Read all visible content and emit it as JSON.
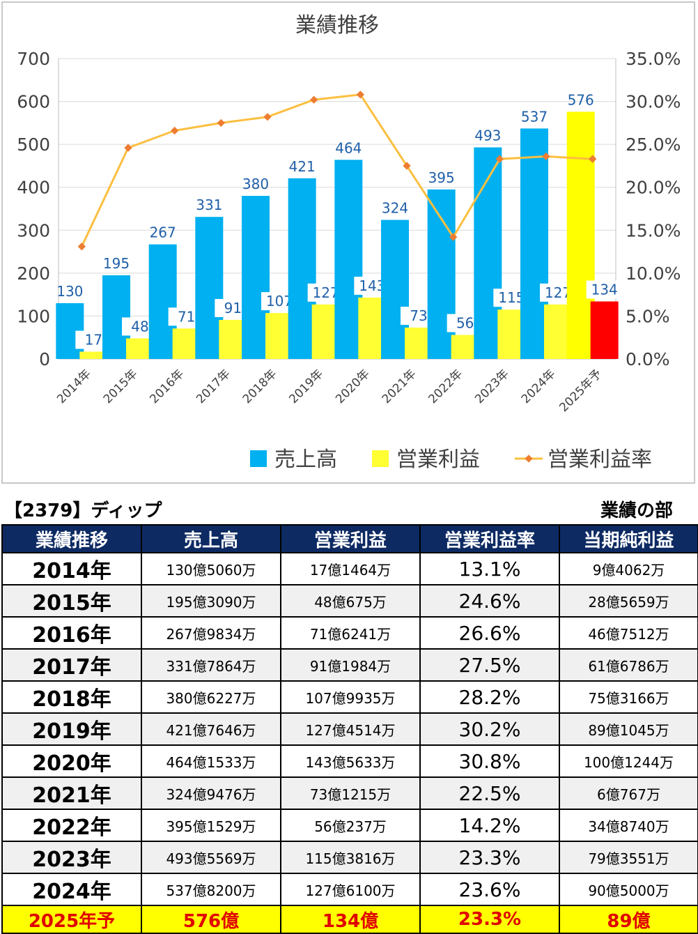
{
  "chart_data": {
    "type": "bar",
    "title": "業績推移",
    "categories": [
      "2014年",
      "2015年",
      "2016年",
      "2017年",
      "2018年",
      "2019年",
      "2020年",
      "2021年",
      "2022年",
      "2023年",
      "2024年",
      "2025年予"
    ],
    "series": [
      {
        "name": "売上高",
        "kind": "bar",
        "axis": "left",
        "color": "#00b0f0",
        "values": [
          130,
          195,
          267,
          331,
          380,
          421,
          464,
          324,
          395,
          493,
          537,
          576
        ]
      },
      {
        "name": "営業利益",
        "kind": "bar",
        "axis": "left",
        "color": "#ffff33",
        "values": [
          17,
          48,
          71,
          91,
          107,
          127,
          143,
          73,
          56,
          115,
          127,
          134
        ]
      },
      {
        "name": "営業利益率",
        "kind": "line",
        "axis": "right",
        "color": "#f4b183",
        "values": [
          13.1,
          24.6,
          26.6,
          27.5,
          28.2,
          30.2,
          30.8,
          22.5,
          14.2,
          23.3,
          23.6,
          23.3
        ]
      }
    ],
    "forecast_colors": {
      "売上高": "#ffff00",
      "営業利益": "#ff0000"
    },
    "ylim": [
      0,
      700
    ],
    "y_ticks": [
      "0",
      "100",
      "200",
      "300",
      "400",
      "500",
      "600",
      "700"
    ],
    "y2lim": [
      0,
      35
    ],
    "y2_ticks": [
      "0.0%",
      "5.0%",
      "10.0%",
      "15.0%",
      "20.0%",
      "25.0%",
      "30.0%",
      "35.0%"
    ],
    "legend": "bottom",
    "grid": true
  },
  "captions": {
    "left": "【2379】ディップ",
    "right": "業績の部"
  },
  "table": {
    "headers": [
      "業績推移",
      "売上高",
      "営業利益",
      "営業利益率",
      "当期純利益"
    ],
    "rows": [
      [
        "2014年",
        "130億5060万",
        "17億1464万",
        "13.1%",
        "9億4062万"
      ],
      [
        "2015年",
        "195億3090万",
        "48億675万",
        "24.6%",
        "28億5659万"
      ],
      [
        "2016年",
        "267億9834万",
        "71億6241万",
        "26.6%",
        "46億7512万"
      ],
      [
        "2017年",
        "331億7864万",
        "91億1984万",
        "27.5%",
        "61億6786万"
      ],
      [
        "2018年",
        "380億6227万",
        "107億9935万",
        "28.2%",
        "75億3166万"
      ],
      [
        "2019年",
        "421億7646万",
        "127億4514万",
        "30.2%",
        "89億1045万"
      ],
      [
        "2020年",
        "464億1533万",
        "143億5633万",
        "30.8%",
        "100億1244万"
      ],
      [
        "2021年",
        "324億9476万",
        "73億1215万",
        "22.5%",
        "6億767万"
      ],
      [
        "2022年",
        "395億1529万",
        "56億237万",
        "14.2%",
        "34億8740万"
      ],
      [
        "2023年",
        "493億5569万",
        "115億3816万",
        "23.3%",
        "79億3551万"
      ],
      [
        "2024年",
        "537億8200万",
        "127億6100万",
        "23.6%",
        "90億5000万"
      ]
    ],
    "forecast_row": [
      "2025年予",
      "576億",
      "134億",
      "23.3%",
      "89億"
    ]
  }
}
